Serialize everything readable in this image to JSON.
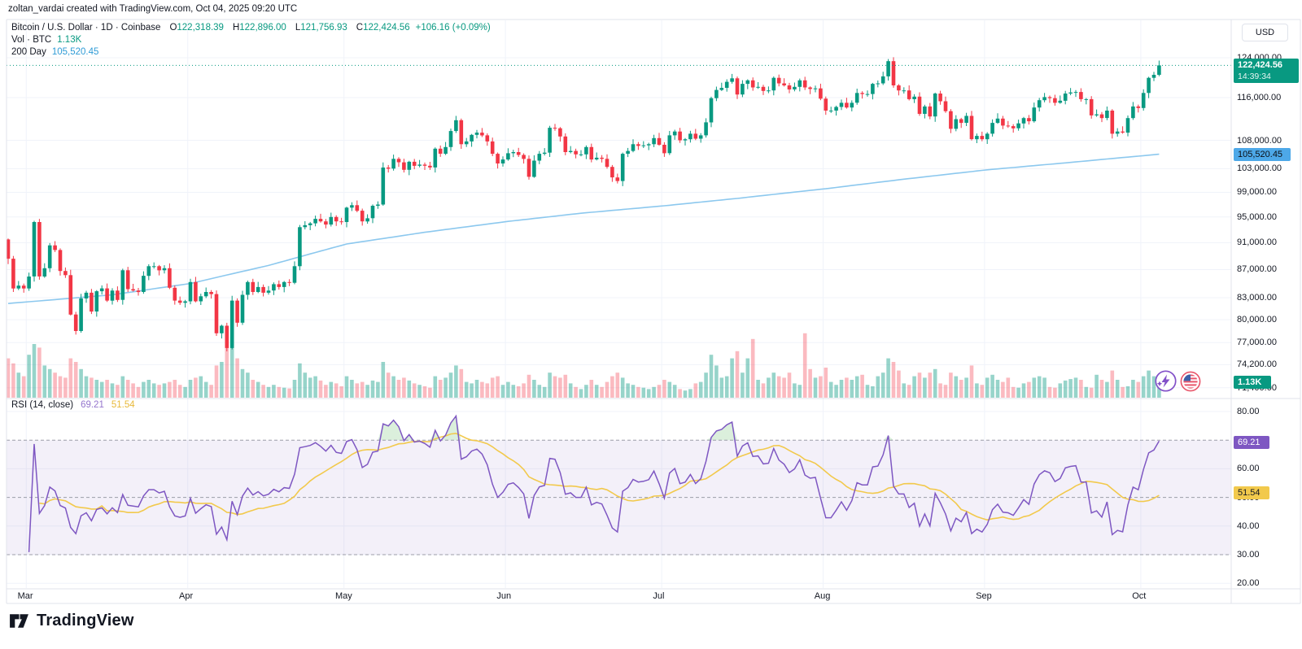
{
  "watermark": "zoltan_vardai created with TradingView.com, Oct 04, 2025 09:20 UTC",
  "legend": {
    "symbol_row": {
      "title": "Bitcoin / U.S. Dollar · 1D · Coinbase",
      "o_label": "O",
      "o": "122,318.39",
      "h_label": "H",
      "h": "122,896.00",
      "l_label": "L",
      "l": "121,756.93",
      "c_label": "C",
      "c": "122,424.56",
      "change": "+106.16 (+0.09%)"
    },
    "volume_row": {
      "label": "Vol · BTC",
      "value": "1.13K"
    },
    "ma_row": {
      "label": "200 Day",
      "value": "105,520.45"
    }
  },
  "rsi_pane": {
    "title": "RSI (14, close)",
    "rsi_value": "69.21",
    "rsi_ma_value": "51.54",
    "hidden_tick": {
      "label": "50.00",
      "value": 50
    }
  },
  "price_axis": {
    "currency_button": "USD",
    "ticks": [
      {
        "label": "124,000.00",
        "value": 124000
      },
      {
        "label": "116,000.00",
        "value": 116000
      },
      {
        "label": "108,000.00",
        "value": 108000
      },
      {
        "label": "103,000.00",
        "value": 103000
      },
      {
        "label": "99,000.00",
        "value": 99000
      },
      {
        "label": "95,000.00",
        "value": 95000
      },
      {
        "label": "91,000.00",
        "value": 91000
      },
      {
        "label": "87,000.00",
        "value": 87000
      },
      {
        "label": "83,000.00",
        "value": 83000
      },
      {
        "label": "80,000.00",
        "value": 80000
      },
      {
        "label": "77,000.00",
        "value": 77000
      },
      {
        "label": "74,200.00",
        "value": 74200
      }
    ],
    "hidden_tick": {
      "label": "71,400.00",
      "value": 71400
    },
    "last_price_badge": {
      "price": "122,424.56",
      "countdown": "14:39:34",
      "value": 122424.56
    },
    "ma_badge": {
      "label": "105,520.45",
      "value": 105520.45
    },
    "volume_badge": "1.13K"
  },
  "rsi_axis_ticks": [
    {
      "label": "80.00",
      "value": 80
    },
    {
      "label": "60.00",
      "value": 60
    },
    {
      "label": "40.00",
      "value": 40
    },
    {
      "label": "30.00",
      "value": 30
    },
    {
      "label": "20.00",
      "value": 20
    }
  ],
  "time_axis": [
    {
      "label": "Mar",
      "day": 4
    },
    {
      "label": "Apr",
      "day": 35
    },
    {
      "label": "May",
      "day": 65
    },
    {
      "label": "Jun",
      "day": 96
    },
    {
      "label": "Jul",
      "day": 126
    },
    {
      "label": "Aug",
      "day": 157
    },
    {
      "label": "Sep",
      "day": 188
    },
    {
      "label": "Oct",
      "day": 218
    }
  ],
  "footer": {
    "logo_text": "TradingView"
  },
  "icons": {
    "toolbar": [
      "flash-boost-icon",
      "us-flag-icon"
    ]
  },
  "colors": {
    "up": "#089981",
    "down": "#F23645",
    "vol_up": "rgba(8,153,129,0.42)",
    "vol_down": "rgba(242,54,69,0.34)",
    "ma200": "#8CC8EE",
    "ma_badge": "#4DA8E8",
    "rsi_line": "#7E57C2",
    "rsi_ma_line": "#F2C94C",
    "rsi_band_fill": "rgba(126,87,194,0.09)",
    "overbought_fill": "rgba(76,175,80,0.20)",
    "oversold_fill": "rgba(255,82,82,0.18)",
    "grid": "#F0F3FA",
    "frame": "#E0E3EB",
    "text": "#131722",
    "dashed_level": "#9B9EA8",
    "last_price_line": "#089981",
    "badge_purple": "#7E57C2",
    "badge_yellow": "#F2C94C",
    "badge_green": "#089981"
  },
  "chart_data": {
    "type": "candlestick+volume+rsi",
    "title": "Bitcoin / U.S. Dollar",
    "interval": "1D",
    "exchange": "Coinbase",
    "price_scale": "log",
    "legend_position": "top-left",
    "grid": true,
    "last_bar": {
      "open": 122318.39,
      "high": 122896.0,
      "low": 121756.93,
      "close": 122424.56,
      "change": 106.16,
      "change_pct": 0.09,
      "volume_btc": "1.13K",
      "countdown": "14:39:34"
    },
    "ma_200_last": 105520.45,
    "rsi_period": 14,
    "rsi_source": "close",
    "rsi_last": 69.21,
    "rsi_ma_last": 51.54,
    "rsi_levels_dashed": [
      70,
      50,
      30
    ],
    "rsi_axis_range_ticks": [
      80,
      60,
      40,
      30,
      20
    ],
    "price_axis_ticks": [
      124000,
      116000,
      108000,
      103000,
      99000,
      95000,
      91000,
      87000,
      83000,
      80000,
      77000,
      74200,
      71400
    ],
    "months": [
      "Mar",
      "Apr",
      "May",
      "Jun",
      "Jul",
      "Aug",
      "Sep",
      "Oct"
    ],
    "days_total": 222,
    "first_open_usd_thousands": 91.5,
    "closes_usd_thousands": [
      88.6,
      84.3,
      84.7,
      84.3,
      86.0,
      94.2,
      86.0,
      87.2,
      90.6,
      89.9,
      86.8,
      86.2,
      80.7,
      78.5,
      82.9,
      83.7,
      81.1,
      83.9,
      84.3,
      82.6,
      84.0,
      82.7,
      86.9,
      84.2,
      84.0,
      83.8,
      86.1,
      87.5,
      87.5,
      86.9,
      87.2,
      84.4,
      82.6,
      82.3,
      82.5,
      85.2,
      82.5,
      83.2,
      83.8,
      83.5,
      78.2,
      79.2,
      76.3,
      82.6,
      79.6,
      83.4,
      85.2,
      83.8,
      84.5,
      83.7,
      84.0,
      84.9,
      84.5,
      85.2,
      85.1,
      87.5,
      93.4,
      93.7,
      94.0,
      94.7,
      94.3,
      93.8,
      95.0,
      94.3,
      94.2,
      96.5,
      96.9,
      96.0,
      94.3,
      94.8,
      96.8,
      97.0,
      103.2,
      103.0,
      104.7,
      104.1,
      102.8,
      104.2,
      103.5,
      103.7,
      103.5,
      103.2,
      106.5,
      105.6,
      106.8,
      109.7,
      111.7,
      107.3,
      107.8,
      109.0,
      109.4,
      108.9,
      107.8,
      105.6,
      103.9,
      104.6,
      105.7,
      105.9,
      105.4,
      104.7,
      101.6,
      104.4,
      105.6,
      105.8,
      110.3,
      110.2,
      108.7,
      105.9,
      106.1,
      105.5,
      105.5,
      106.8,
      104.6,
      104.9,
      104.7,
      103.3,
      101.5,
      100.9,
      105.6,
      106.1,
      107.3,
      107.0,
      107.1,
      107.3,
      108.4,
      107.2,
      105.7,
      108.9,
      109.6,
      108.0,
      108.2,
      109.2,
      108.3,
      108.9,
      111.3,
      115.9,
      117.5,
      117.9,
      119.1,
      119.8,
      116.6,
      118.7,
      119.4,
      118.0,
      118.1,
      117.3,
      117.4,
      119.9,
      118.8,
      118.4,
      117.6,
      118.1,
      119.4,
      118.0,
      117.7,
      117.8,
      115.8,
      113.5,
      113.5,
      114.2,
      115.0,
      114.1,
      115.0,
      116.9,
      116.7,
      116.7,
      118.7,
      118.8,
      120.2,
      123.3,
      118.4,
      117.4,
      117.4,
      115.7,
      116.2,
      112.9,
      114.3,
      112.4,
      116.8,
      115.3,
      113.4,
      110.1,
      111.9,
      111.2,
      112.5,
      108.2,
      108.8,
      108.2,
      109.2,
      111.2,
      112.0,
      110.7,
      110.6,
      110.2,
      111.1,
      112.1,
      111.5,
      114.1,
      115.5,
      116.1,
      115.9,
      115.0,
      115.4,
      116.8,
      117.0,
      117.1,
      115.7,
      115.7,
      112.6,
      112.8,
      112.1,
      113.5,
      109.2,
      109.6,
      109.4,
      112.1,
      114.3,
      114.0,
      116.9,
      119.9,
      120.5,
      122.42
    ],
    "volume_relative": [
      55,
      48,
      35,
      30,
      60,
      75,
      70,
      45,
      40,
      35,
      30,
      28,
      55,
      50,
      40,
      30,
      28,
      25,
      22,
      25,
      20,
      18,
      30,
      25,
      20,
      15,
      22,
      25,
      20,
      18,
      20,
      22,
      25,
      18,
      15,
      25,
      28,
      30,
      22,
      18,
      45,
      50,
      70,
      85,
      55,
      40,
      35,
      25,
      22,
      18,
      15,
      18,
      15,
      14,
      13,
      25,
      48,
      35,
      28,
      30,
      24,
      18,
      22,
      20,
      16,
      30,
      25,
      20,
      22,
      18,
      24,
      22,
      50,
      35,
      30,
      25,
      28,
      24,
      20,
      18,
      16,
      14,
      30,
      25,
      28,
      35,
      45,
      40,
      22,
      20,
      25,
      22,
      20,
      28,
      30,
      18,
      22,
      18,
      16,
      20,
      32,
      25,
      18,
      15,
      35,
      30,
      28,
      32,
      20,
      15,
      12,
      18,
      25,
      18,
      15,
      22,
      30,
      35,
      28,
      20,
      18,
      15,
      14,
      12,
      15,
      18,
      25,
      22,
      18,
      12,
      10,
      12,
      20,
      22,
      35,
      60,
      45,
      28,
      30,
      55,
      65,
      35,
      55,
      82,
      25,
      20,
      28,
      35,
      30,
      28,
      35,
      20,
      18,
      90,
      40,
      28,
      30,
      42,
      22,
      18,
      25,
      28,
      25,
      30,
      32,
      18,
      16,
      30,
      35,
      55,
      50,
      38,
      20,
      18,
      30,
      35,
      28,
      35,
      40,
      20,
      18,
      35,
      30,
      25,
      28,
      45,
      20,
      18,
      28,
      32,
      25,
      22,
      28,
      15,
      14,
      20,
      22,
      28,
      30,
      28,
      15,
      14,
      20,
      24,
      26,
      28,
      25,
      15,
      14,
      32,
      25,
      22,
      38,
      25,
      15,
      16,
      25,
      22,
      30,
      38,
      30,
      26
    ],
    "ma_200_day_anchors": [
      [
        0,
        82.2
      ],
      [
        20,
        83.4
      ],
      [
        35,
        85.0
      ],
      [
        50,
        87.6
      ],
      [
        65,
        90.8
      ],
      [
        80,
        92.6
      ],
      [
        96,
        94.3
      ],
      [
        110,
        95.6
      ],
      [
        126,
        96.8
      ],
      [
        140,
        98.0
      ],
      [
        157,
        99.6
      ],
      [
        172,
        101.2
      ],
      [
        188,
        102.8
      ],
      [
        203,
        104.0
      ],
      [
        221,
        105.52
      ]
    ]
  }
}
